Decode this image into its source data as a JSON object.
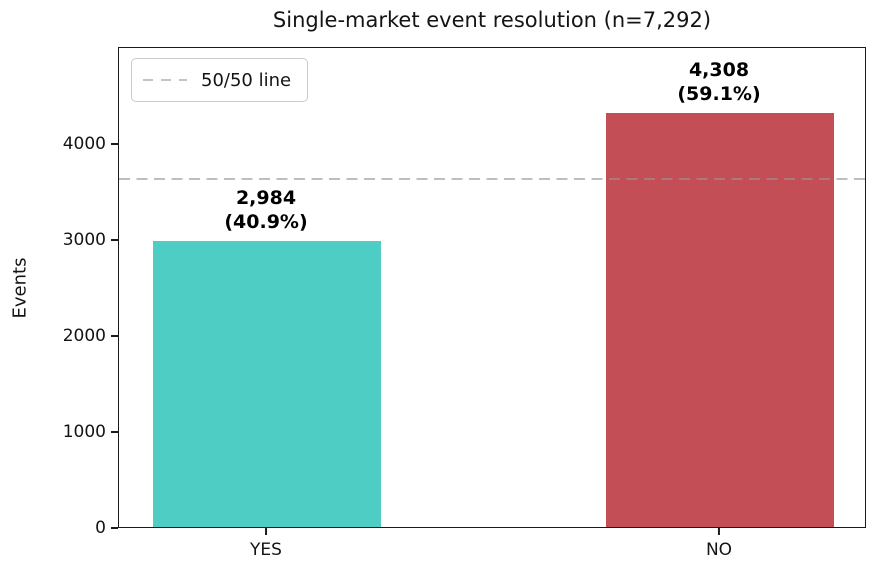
{
  "title": "Single-market event resolution (n=7,292)",
  "ylabel": "Events",
  "legend": {
    "label": "50/50 line"
  },
  "chart_data": {
    "type": "bar",
    "title": "Single-market event resolution (n=7,292)",
    "xlabel": "",
    "ylabel": "Events",
    "categories": [
      "YES",
      "NO"
    ],
    "values": [
      2984,
      4308
    ],
    "percentages": [
      40.9,
      59.1
    ],
    "total_n": 7292,
    "bar_colors": [
      "#4ECDC4",
      "#C44E56"
    ],
    "annotations": [
      {
        "count": "2,984",
        "pct": "(40.9%)"
      },
      {
        "count": "4,308",
        "pct": "(59.1%)"
      }
    ],
    "yticks": [
      0,
      1000,
      2000,
      3000,
      4000
    ],
    "ylim": [
      0,
      5010
    ],
    "reference_line": {
      "value": 3646,
      "label": "50/50 line",
      "color": "#C2C2C2",
      "style": "dashed"
    },
    "legend_position": "upper left",
    "grid": false
  }
}
